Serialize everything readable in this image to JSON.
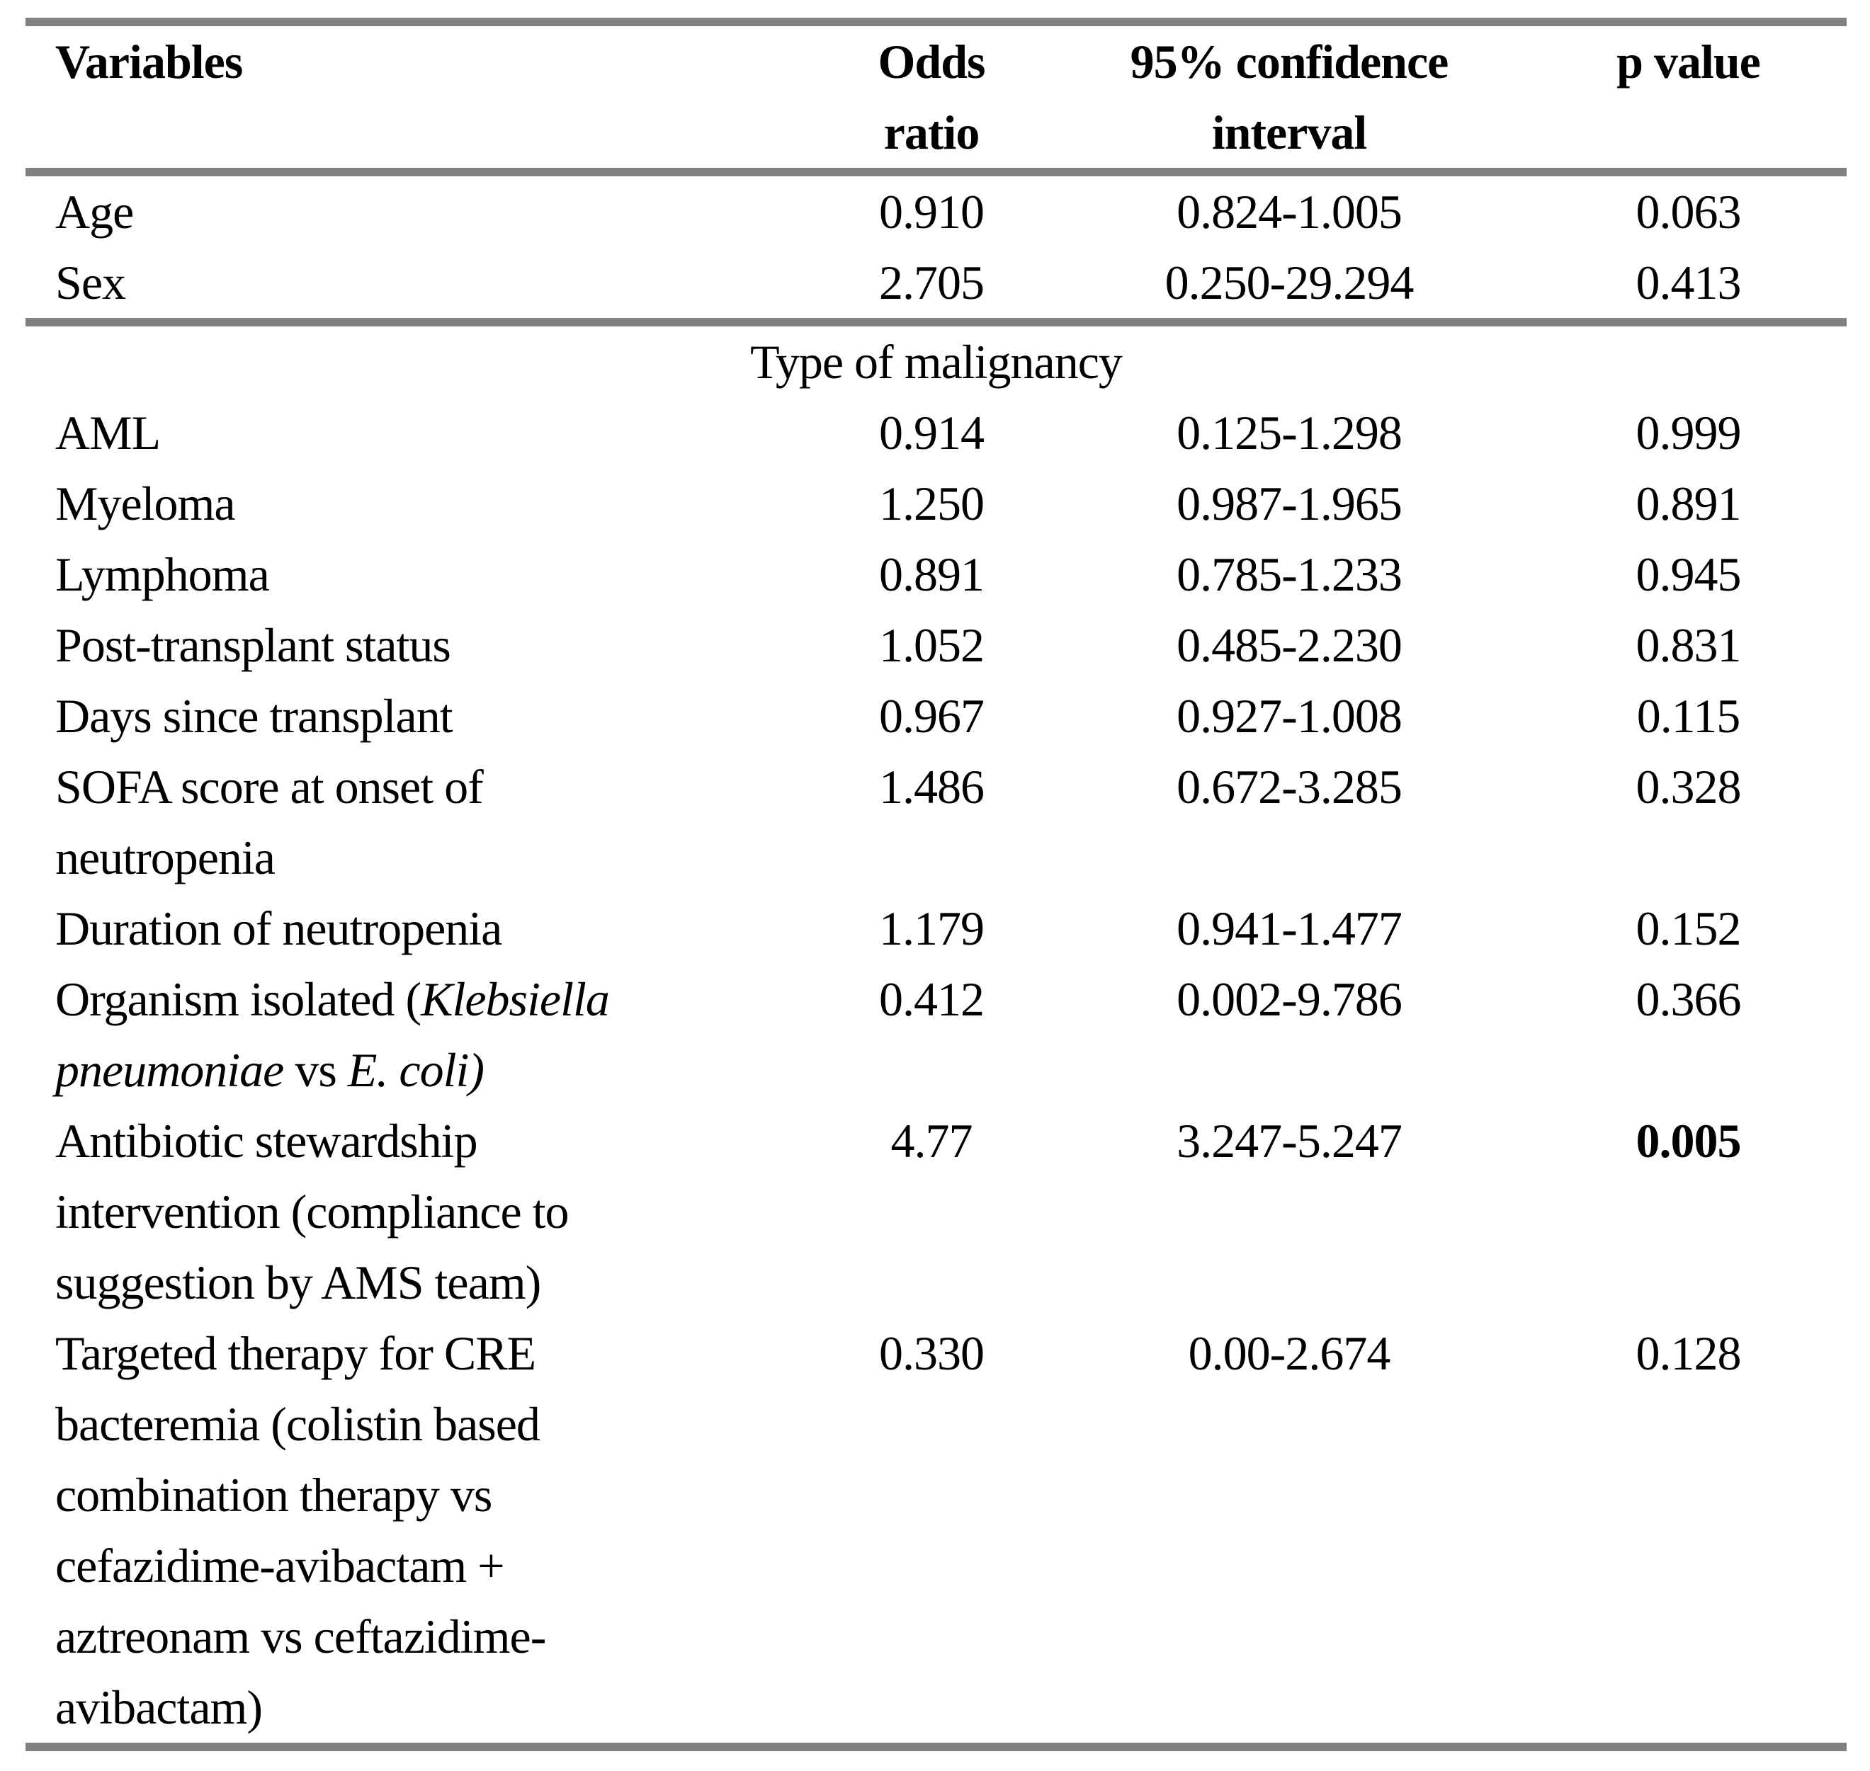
{
  "page": {
    "background": "#ffffff",
    "rule_color": "#808080",
    "text_color": "#000000"
  },
  "table": {
    "columns": [
      {
        "label": "Variables"
      },
      {
        "label": "Odds\nratio"
      },
      {
        "label": "95% confidence\ninterval"
      },
      {
        "label": "p value"
      }
    ],
    "rows": [
      {
        "variable": [
          {
            "text": "Age"
          }
        ],
        "odds": "0.910",
        "ci": "0.824-1.005",
        "p": "0.063"
      },
      {
        "variable": [
          {
            "text": "Sex"
          }
        ],
        "odds": "2.705",
        "ci": "0.250-29.294",
        "p": "0.413",
        "rule_after": true
      },
      {
        "section": true,
        "variable": [
          {
            "text": "Type of malignancy"
          }
        ]
      },
      {
        "variable": [
          {
            "text": "AML"
          }
        ],
        "odds": "0.914",
        "ci": "0.125-1.298",
        "p": "0.999"
      },
      {
        "variable": [
          {
            "text": "Myeloma"
          }
        ],
        "odds": "1.250",
        "ci": "0.987-1.965",
        "p": "0.891"
      },
      {
        "variable": [
          {
            "text": "Lymphoma"
          }
        ],
        "odds": "0.891",
        "ci": "0.785-1.233",
        "p": "0.945"
      },
      {
        "variable": [
          {
            "text": "Post-transplant status"
          }
        ],
        "odds": "1.052",
        "ci": "0.485-2.230",
        "p": "0.831"
      },
      {
        "variable": [
          {
            "text": "Days since transplant"
          }
        ],
        "odds": "0.967",
        "ci": "0.927-1.008",
        "p": "0.115"
      },
      {
        "variable": [
          {
            "text": "SOFA score at onset of\nneutropenia"
          }
        ],
        "odds": "1.486",
        "ci": "0.672-3.285",
        "p": "0.328"
      },
      {
        "variable": [
          {
            "text": "Duration of neutropenia"
          }
        ],
        "odds": "1.179",
        "ci": "0.941-1.477",
        "p": "0.152"
      },
      {
        "variable": [
          {
            "text": "Organism isolated ("
          },
          {
            "text": "Klebsiella\npneumoniae",
            "italic": true
          },
          {
            "text": " vs "
          },
          {
            "text": "E. coli)",
            "italic": true
          }
        ],
        "odds": "0.412",
        "ci": "0.002-9.786",
        "p": "0.366"
      },
      {
        "variable": [
          {
            "text": "Antibiotic stewardship\nintervention (compliance to\nsuggestion by AMS team)"
          }
        ],
        "odds": "4.77",
        "ci": "3.247-5.247",
        "p": "0.005",
        "p_bold": true
      },
      {
        "variable": [
          {
            "text": "Targeted therapy for CRE\nbacteremia (colistin based\ncombination therapy vs\ncefazidime-avibactam +\naztreonam vs ceftazidime-\navibactam)"
          }
        ],
        "odds": "0.330",
        "ci": "0.00-2.674",
        "p": "0.128"
      }
    ]
  }
}
